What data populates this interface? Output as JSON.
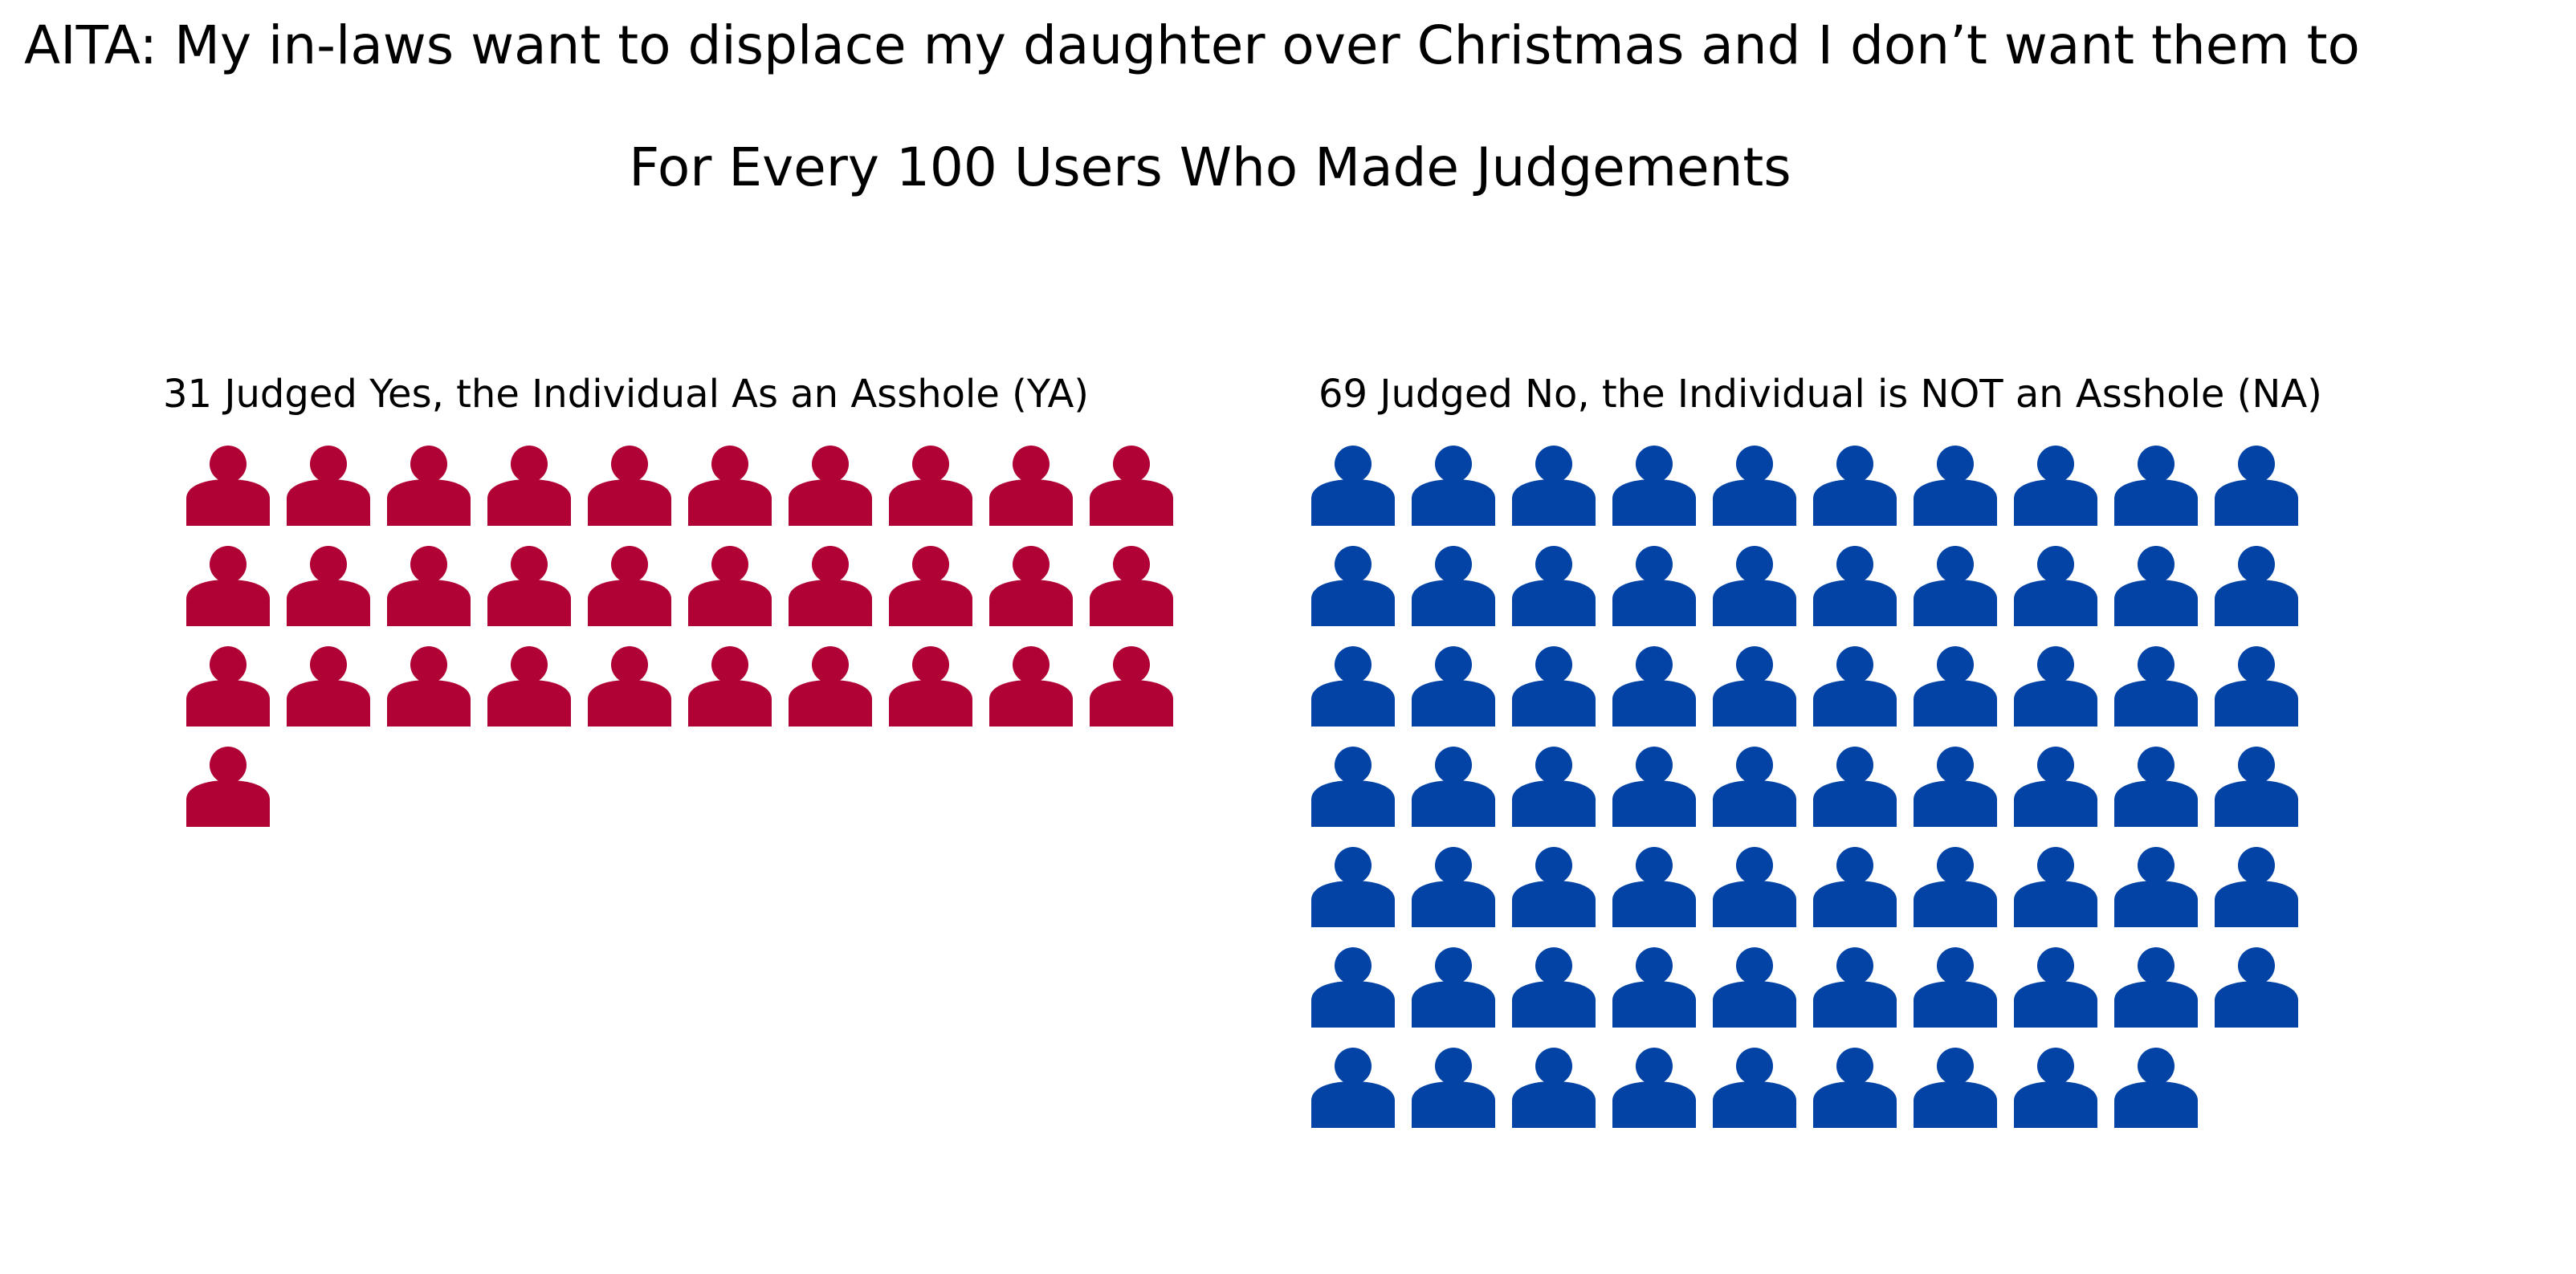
{
  "title": "AITA: My in-laws want to displace my daughter over Christmas and I don’t want them to",
  "subtitle": "For Every 100 Users Who Made Judgements",
  "colors": {
    "ya": "#B00234",
    "na": "#0343A6"
  },
  "icon": "person-icon",
  "chart_data": {
    "type": "pictogram",
    "total": 100,
    "icons_per_row": 10,
    "groups": [
      {
        "key": "ya",
        "label": "31 Judged Yes, the Individual As an Asshole (YA)",
        "count": 31,
        "color": "#B00234"
      },
      {
        "key": "na",
        "label": "69 Judged No, the Individual is NOT an Asshole (NA)",
        "count": 69,
        "color": "#0343A6"
      }
    ]
  }
}
